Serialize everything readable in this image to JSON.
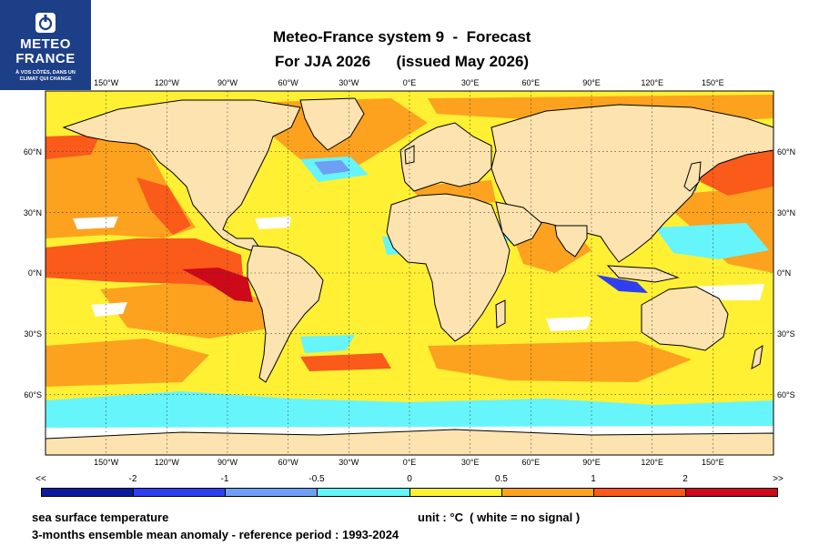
{
  "logo": {
    "line1": "METEO",
    "line2": "FRANCE",
    "tagline1": "À VOS CÔTÉS, DANS UN",
    "tagline2": "CLIMAT QUI CHANGE"
  },
  "title": {
    "line1": "Meteo-France system 9  -  Forecast",
    "line2": "For JJA 2026      (issued May 2026)"
  },
  "axes": {
    "lon_ticks": [
      "150°W",
      "120°W",
      "90°W",
      "60°W",
      "30°W",
      "0°E",
      "30°E",
      "60°E",
      "90°E",
      "120°E",
      "150°E"
    ],
    "lat_ticks": [
      "60°N",
      "30°N",
      "0°N",
      "30°S",
      "60°S"
    ]
  },
  "colorbar": {
    "labels": [
      "<<",
      "-2",
      "-1",
      "-0.5",
      "0",
      "0.5",
      "1",
      "2",
      ">>"
    ],
    "colors": [
      "#0a1a9c",
      "#2e3ff0",
      "#6f9ff5",
      "#66f5fb",
      "#fff033",
      "#fca21e",
      "#fa5a1a",
      "#cc0a1a"
    ]
  },
  "footer": {
    "variable": "sea surface temperature",
    "unit": "unit : °C  ( white = no signal )",
    "description": "3-months ensemble mean anomaly - reference period : 1993-2024"
  },
  "palette": {
    "land": "#fde3b0",
    "brand": "#1d3f87"
  }
}
